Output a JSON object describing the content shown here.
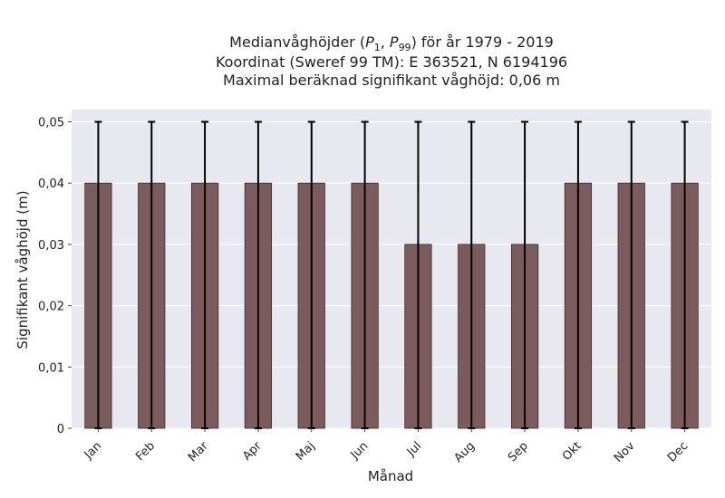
{
  "chart_data": {
    "type": "bar",
    "title_lines": [
      "Medianvåghöjder (P1, P99) för år 1979 - 2019",
      "Koordinat (Sweref 99 TM): E 363521, N 6194196",
      "Maximal beräknad signifikant våghöjd: 0,06 m"
    ],
    "xlabel": "Månad",
    "ylabel": "Signifikant våghöjd (m)",
    "categories": [
      "Jan",
      "Feb",
      "Mar",
      "Apr",
      "Maj",
      "Jun",
      "Jul",
      "Aug",
      "Sep",
      "Okt",
      "Nov",
      "Dec"
    ],
    "values": [
      0.04,
      0.04,
      0.04,
      0.04,
      0.04,
      0.04,
      0.03,
      0.03,
      0.03,
      0.04,
      0.04,
      0.04
    ],
    "error_low": [
      0,
      0,
      0,
      0,
      0,
      0,
      0,
      0,
      0,
      0,
      0,
      0
    ],
    "error_high": [
      0.05,
      0.05,
      0.05,
      0.05,
      0.05,
      0.05,
      0.05,
      0.05,
      0.05,
      0.05,
      0.05,
      0.05
    ],
    "ylim": [
      0,
      0.052
    ],
    "yticks": [
      0,
      0.01,
      0.02,
      0.03,
      0.04,
      0.05
    ],
    "ytick_labels": [
      "0",
      "0,01",
      "0,02",
      "0,03",
      "0,04",
      "0,05"
    ],
    "grid": true,
    "colors": {
      "bar": "#7b5b5b",
      "bar_edge": "#3a2a2a",
      "plot_background": "#e8e8f0",
      "grid": "#ffffff",
      "error_bar": "#000000"
    }
  }
}
